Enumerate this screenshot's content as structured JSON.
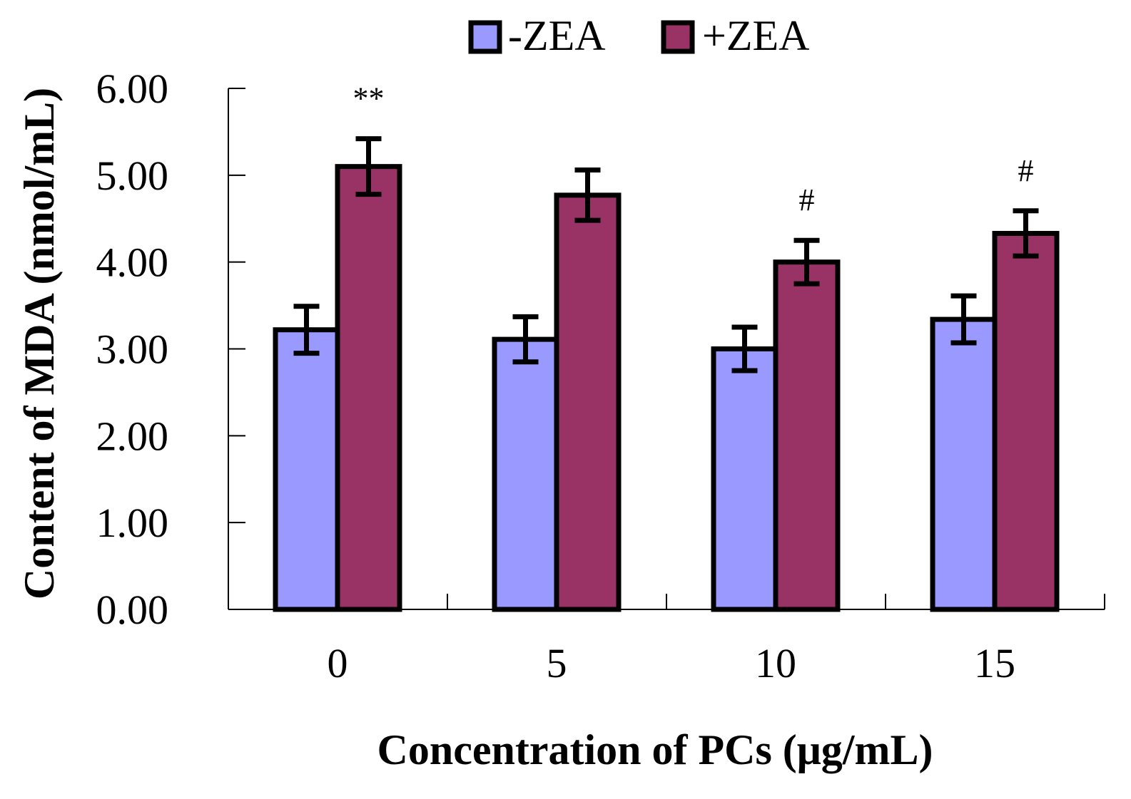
{
  "chart_data": {
    "type": "bar",
    "title": "",
    "xlabel": "Concentration of  PCs (μg/mL)",
    "ylabel": "Content of  MDA (nmol/mL)",
    "categories": [
      "0",
      "5",
      "10",
      "15"
    ],
    "ylim": [
      0,
      6
    ],
    "yticks": [
      "0.00",
      "1.00",
      "2.00",
      "3.00",
      "4.00",
      "5.00",
      "6.00"
    ],
    "grid": false,
    "legend_position": "top-center",
    "series": [
      {
        "name": "-ZEA",
        "color": "#9999ff",
        "values": [
          3.22,
          3.11,
          3.0,
          3.34
        ],
        "errors": [
          0.27,
          0.26,
          0.25,
          0.27
        ]
      },
      {
        "name": "+ZEA",
        "color": "#993366",
        "values": [
          5.1,
          4.77,
          4.0,
          4.33
        ],
        "errors": [
          0.32,
          0.29,
          0.25,
          0.26
        ]
      }
    ],
    "annotations": [
      {
        "category": "0",
        "series": "+ZEA",
        "text": "**"
      },
      {
        "category": "10",
        "series": "+ZEA",
        "text": "#"
      },
      {
        "category": "15",
        "series": "+ZEA",
        "text": "#"
      }
    ]
  }
}
